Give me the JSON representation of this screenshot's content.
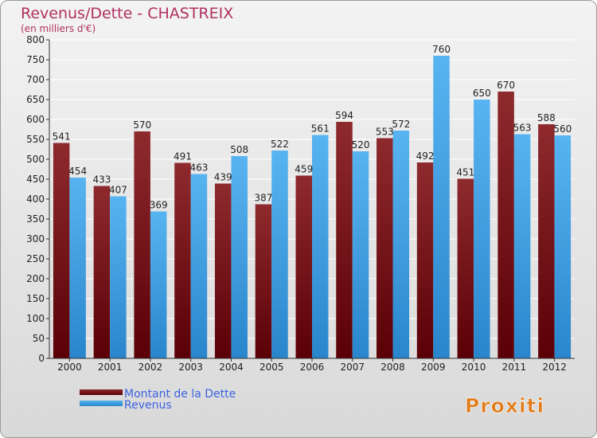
{
  "chart_data": {
    "type": "bar",
    "title": "Revenus/Dette - CHASTREIX",
    "subtitle": "(en milliers d'€)",
    "categories": [
      "2000",
      "2001",
      "2002",
      "2003",
      "2004",
      "2005",
      "2006",
      "2007",
      "2008",
      "2009",
      "2010",
      "2011",
      "2012"
    ],
    "series": [
      {
        "name": "Montant de la Dette",
        "color": "#7a0f14",
        "values": [
          541,
          433,
          570,
          491,
          439,
          387,
          459,
          594,
          553,
          492,
          451,
          670,
          588
        ]
      },
      {
        "name": "Revenus",
        "color": "#3a9be0",
        "values": [
          454,
          407,
          369,
          463,
          508,
          522,
          561,
          520,
          572,
          760,
          650,
          563,
          560
        ]
      }
    ],
    "ylim": [
      0,
      800
    ],
    "ytick_step": 50,
    "grid": true,
    "legend_position": "bottom-left"
  },
  "logo": {
    "text": "Proxiti"
  }
}
